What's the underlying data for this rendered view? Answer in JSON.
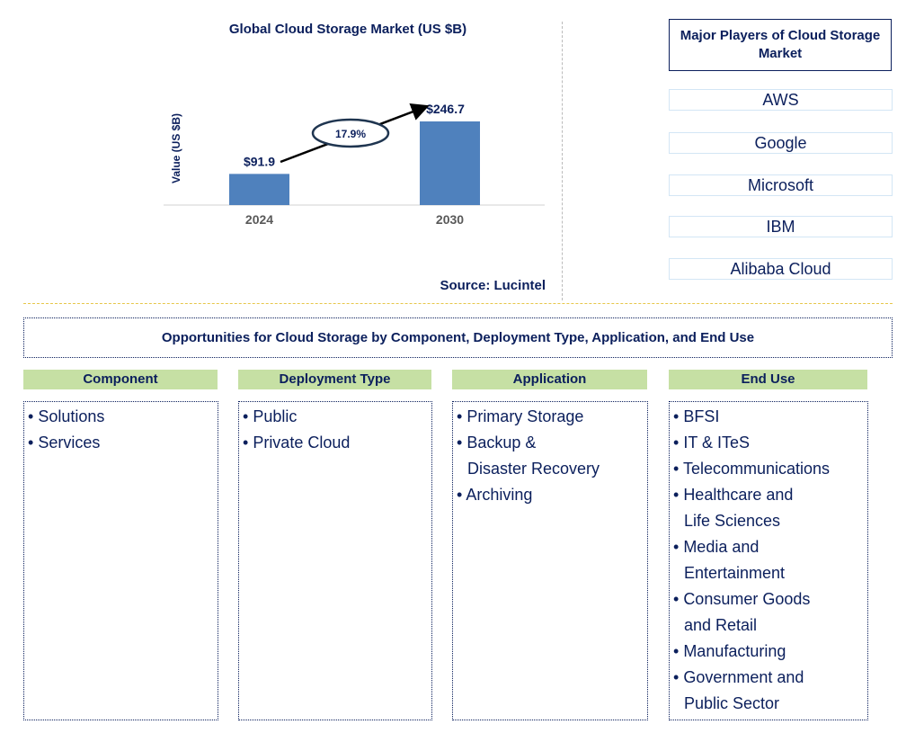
{
  "chart_data": {
    "type": "bar",
    "title": "Global Cloud Storage Market (US $B)",
    "ylabel": "Value (US $B)",
    "categories": [
      "2024",
      "2030"
    ],
    "values": [
      91.9,
      246.7
    ],
    "data_labels": [
      "$91.9",
      "$246.7"
    ],
    "annotation": "17.9%",
    "bar_color": "#4f81bd",
    "grid": false
  },
  "source": "Source: Lucintel",
  "players": {
    "title": "Major Players of Cloud Storage Market",
    "items": [
      "AWS",
      "Google",
      "Microsoft",
      "IBM",
      "Alibaba Cloud"
    ]
  },
  "opportunities": {
    "title": "Opportunities for Cloud Storage by Component, Deployment Type, Application, and End Use",
    "columns": [
      {
        "header": "Component",
        "items": [
          "Solutions",
          "Services"
        ]
      },
      {
        "header": "Deployment Type",
        "items": [
          "Public",
          "Private Cloud"
        ]
      },
      {
        "header": "Application",
        "items": [
          "Primary Storage",
          "Backup &\nDisaster Recovery",
          "Archiving"
        ]
      },
      {
        "header": "End Use",
        "items": [
          "BFSI",
          "IT & ITeS",
          "Telecommunications",
          "Healthcare and\nLife Sciences",
          "Media and\nEntertainment",
          "Consumer Goods\nand Retail",
          "Manufacturing",
          "Government and\nPublic Sector"
        ]
      }
    ]
  }
}
